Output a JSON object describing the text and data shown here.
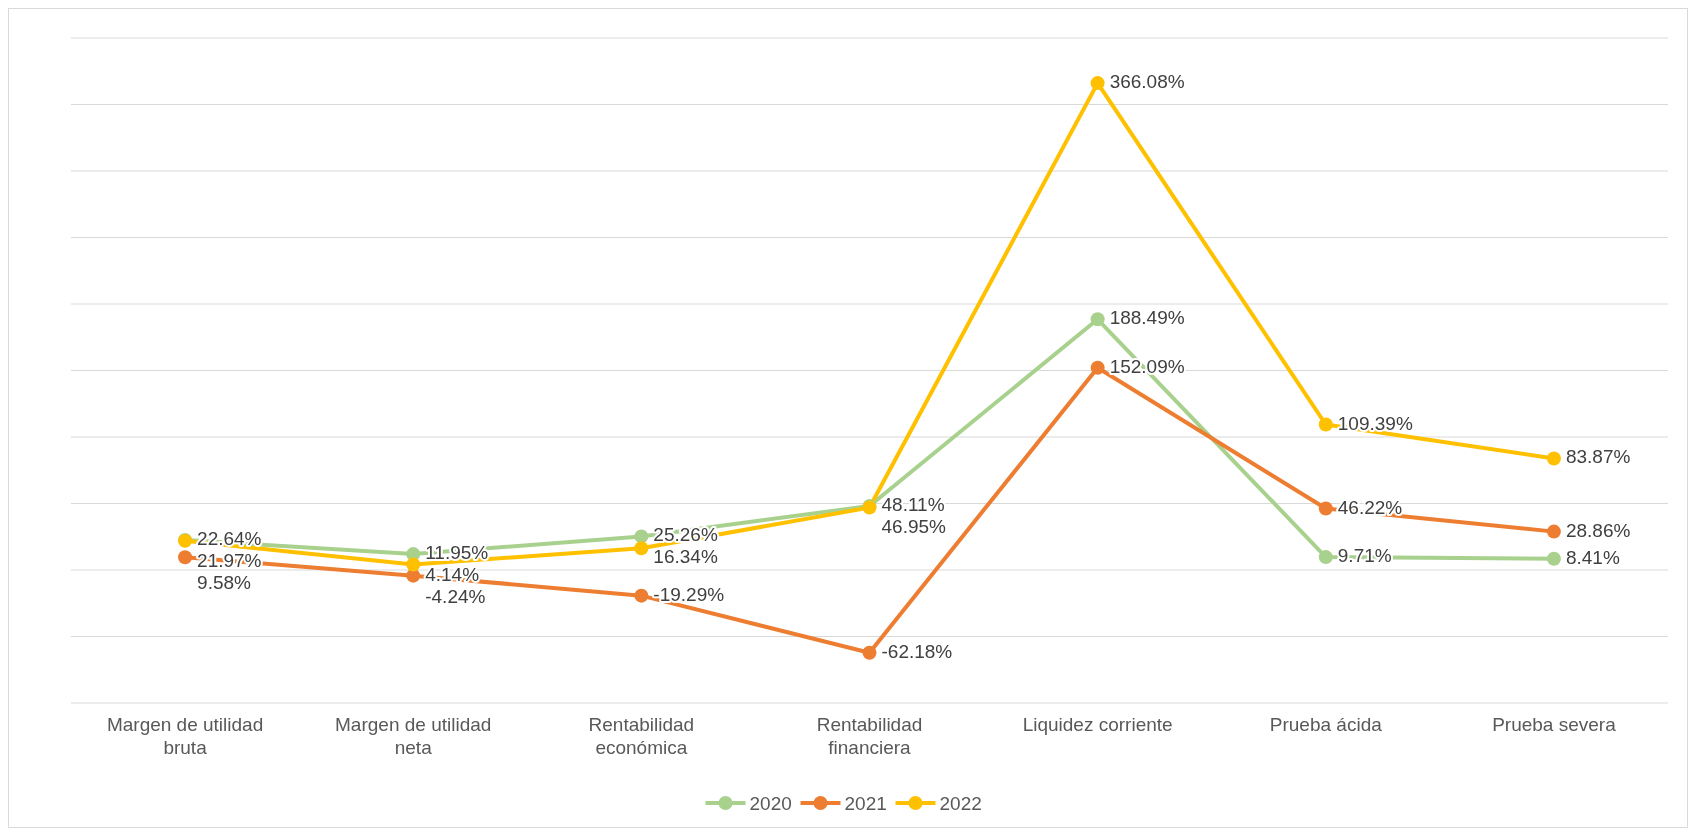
{
  "chart_data": {
    "type": "line",
    "categories": [
      "Margen de utilidad bruta",
      "Margen de utilidad neta",
      "Rentabilidad económica",
      "Rentabilidad financiera",
      "Liquidez corriente",
      "Prueba ácida",
      "Prueba severa"
    ],
    "series": [
      {
        "name": "2020",
        "color": "#a9d18e",
        "values": [
          22.64,
          11.95,
          25.26,
          48.11,
          188.49,
          9.71,
          8.41
        ],
        "value_labels": [
          "22.64%",
          "11.95%",
          "25.26%",
          "48.11%",
          "188.49%",
          "9.71%",
          "8.41%"
        ]
      },
      {
        "name": "2021",
        "color": "#ed7d31",
        "values": [
          9.58,
          -4.24,
          -19.29,
          -62.18,
          152.09,
          46.22,
          28.86
        ],
        "value_labels": [
          "9.58%",
          "-4.24%",
          "-19.29%",
          "-62.18%",
          "152.09%",
          "46.22%",
          "28.86%"
        ]
      },
      {
        "name": "2022",
        "color": "#ffc000",
        "values": [
          21.97,
          4.14,
          16.34,
          46.95,
          366.08,
          109.39,
          83.87
        ],
        "value_labels": [
          "21.97%",
          "4.14%",
          "16.34%",
          "46.95%",
          "366.08%",
          "109.39%",
          "83.87%"
        ]
      }
    ],
    "ylim": [
      -100,
      400
    ],
    "yticks": [
      {
        "value": -100,
        "label": null
      },
      {
        "value": -50,
        "label": null
      },
      {
        "value": 0,
        "label": null
      },
      {
        "value": 50,
        "label": null
      },
      {
        "value": 100,
        "label": null
      },
      {
        "value": 150,
        "label": null
      },
      {
        "value": 200,
        "label": null
      },
      {
        "value": 250,
        "label": null
      },
      {
        "value": 300,
        "label": null
      },
      {
        "value": 350,
        "label": null
      },
      {
        "value": 400,
        "label": null
      }
    ],
    "tick_labels": "x",
    "grid": "y",
    "legend": "bottom",
    "marker": "circle",
    "line_style": "solid"
  }
}
